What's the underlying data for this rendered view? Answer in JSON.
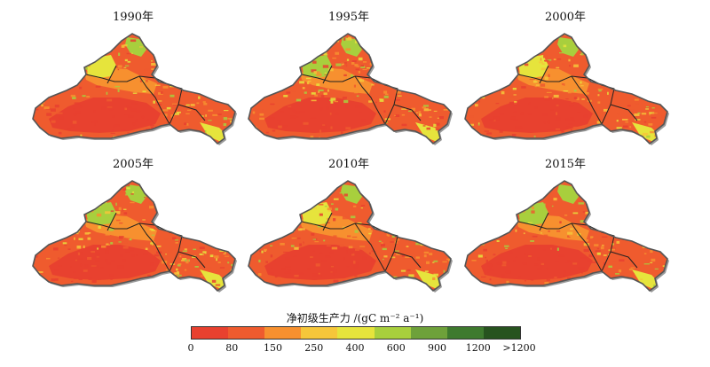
{
  "panels": [
    {
      "year": "1990年"
    },
    {
      "year": "1995年"
    },
    {
      "year": "2000年"
    },
    {
      "year": "2005年"
    },
    {
      "year": "2010年"
    },
    {
      "year": "2015年"
    }
  ],
  "legend": {
    "title": "净初级生产力 /(gC m⁻² a⁻¹)",
    "labels": [
      "0",
      "80",
      "150",
      "250",
      "400",
      "600",
      "900",
      "1200",
      ">1200"
    ],
    "colors": [
      "#e8412f",
      "#ef5b2e",
      "#f7902f",
      "#f6c63a",
      "#e6e43c",
      "#a8cf3d",
      "#6ea13a",
      "#3e7a2e",
      "#27531f"
    ]
  }
}
